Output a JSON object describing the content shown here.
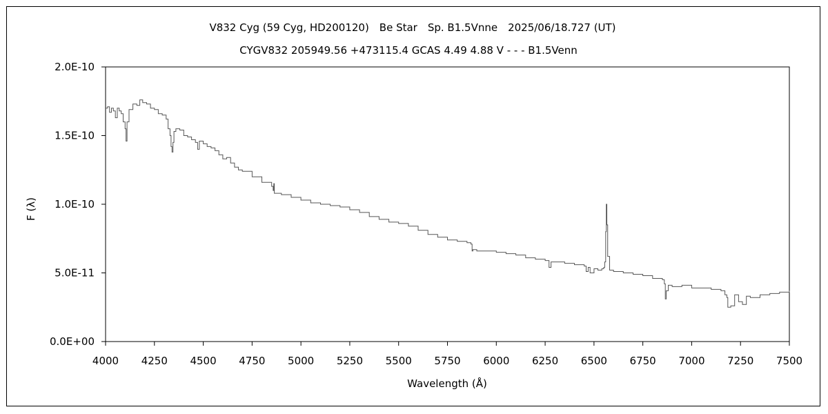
{
  "chart_data": {
    "type": "line",
    "title": "V832 Cyg (59 Cyg, HD200120)　Be Star　Sp. B1.5Vnne　2025/06/18.727 (UT)",
    "subtitle": "CYGV832 205949.56 +473115.4 GCAS 4.49 4.88 V - - - B1.5Venn",
    "xlabel": "Wavelength (Å)",
    "ylabel": "F (λ)",
    "xlim": [
      4000,
      7500
    ],
    "ylim": [
      0,
      2e-10
    ],
    "x_ticks": [
      4000,
      4250,
      4500,
      4750,
      5000,
      5250,
      5500,
      5750,
      6000,
      6250,
      6500,
      6750,
      7000,
      7250,
      7500
    ],
    "x_tick_labels": [
      "4000",
      "4250",
      "4500",
      "4750",
      "5000",
      "5250",
      "5500",
      "5750",
      "6000",
      "6250",
      "6500",
      "6750",
      "7000",
      "7250",
      "7500"
    ],
    "y_ticks": [
      0,
      5e-11,
      1e-10,
      1.5e-10,
      2e-10
    ],
    "y_tick_labels": [
      "0.0E+00",
      "5.0E-11",
      "1.0E-10",
      "1.5E-10",
      "2.0E-10"
    ],
    "grid": false,
    "series": [
      {
        "color": "#555555",
        "x": [
          4000,
          4010,
          4020,
          4030,
          4040,
          4050,
          4060,
          4070,
          4080,
          4090,
          4100,
          4105,
          4110,
          4120,
          4140,
          4160,
          4175,
          4190,
          4210,
          4230,
          4250,
          4270,
          4290,
          4310,
          4320,
          4330,
          4335,
          4340,
          4345,
          4350,
          4360,
          4380,
          4400,
          4420,
          4440,
          4460,
          4471,
          4480,
          4500,
          4520,
          4540,
          4560,
          4580,
          4600,
          4620,
          4640,
          4660,
          4680,
          4700,
          4750,
          4800,
          4850,
          4858,
          4861,
          4864,
          4870,
          4900,
          4950,
          5000,
          5050,
          5100,
          5150,
          5200,
          5250,
          5300,
          5350,
          5400,
          5450,
          5500,
          5550,
          5600,
          5650,
          5700,
          5750,
          5800,
          5850,
          5870,
          5876,
          5880,
          5890,
          5900,
          5950,
          6000,
          6050,
          6100,
          6150,
          6200,
          6250,
          6270,
          6280,
          6300,
          6350,
          6400,
          6450,
          6460,
          6470,
          6480,
          6500,
          6520,
          6540,
          6550,
          6555,
          6560,
          6563,
          6566,
          6570,
          6580,
          6600,
          6650,
          6700,
          6750,
          6800,
          6850,
          6860,
          6865,
          6870,
          6880,
          6900,
          6950,
          7000,
          7050,
          7100,
          7150,
          7170,
          7180,
          7185,
          7200,
          7220,
          7240,
          7260,
          7280,
          7300,
          7350,
          7400,
          7450,
          7500
        ],
        "y": [
          1.7e-10,
          1.71e-10,
          1.67e-10,
          1.7e-10,
          1.68e-10,
          1.63e-10,
          1.7e-10,
          1.68e-10,
          1.66e-10,
          1.6e-10,
          1.55e-10,
          1.46e-10,
          1.6e-10,
          1.69e-10,
          1.73e-10,
          1.72e-10,
          1.76e-10,
          1.74e-10,
          1.73e-10,
          1.7e-10,
          1.69e-10,
          1.66e-10,
          1.65e-10,
          1.62e-10,
          1.55e-10,
          1.5e-10,
          1.42e-10,
          1.38e-10,
          1.45e-10,
          1.53e-10,
          1.55e-10,
          1.54e-10,
          1.5e-10,
          1.49e-10,
          1.47e-10,
          1.45e-10,
          1.4e-10,
          1.46e-10,
          1.44e-10,
          1.42e-10,
          1.41e-10,
          1.39e-10,
          1.36e-10,
          1.33e-10,
          1.34e-10,
          1.3e-10,
          1.27e-10,
          1.25e-10,
          1.24e-10,
          1.2e-10,
          1.16e-10,
          1.13e-10,
          1.1e-10,
          1.15e-10,
          1.08e-10,
          1.08e-10,
          1.07e-10,
          1.05e-10,
          1.03e-10,
          1.01e-10,
          1e-10,
          9.9e-11,
          9.8e-11,
          9.6e-11,
          9.4e-11,
          9.1e-11,
          8.9e-11,
          8.7e-11,
          8.6e-11,
          8.4e-11,
          8.1e-11,
          7.8e-11,
          7.6e-11,
          7.4e-11,
          7.3e-11,
          7.2e-11,
          7.1e-11,
          6.6e-11,
          6.7e-11,
          6.7e-11,
          6.6e-11,
          6.6e-11,
          6.5e-11,
          6.4e-11,
          6.3e-11,
          6.1e-11,
          6e-11,
          5.9e-11,
          5.4e-11,
          5.8e-11,
          5.8e-11,
          5.7e-11,
          5.6e-11,
          5.5e-11,
          5.1e-11,
          5.4e-11,
          5e-11,
          5.3e-11,
          5.2e-11,
          5.3e-11,
          5.4e-11,
          5.8e-11,
          8e-11,
          1e-10,
          8.5e-11,
          6.2e-11,
          5.2e-11,
          5.1e-11,
          5e-11,
          4.9e-11,
          4.8e-11,
          4.6e-11,
          4.5e-11,
          4.2e-11,
          3.1e-11,
          3.7e-11,
          4.1e-11,
          4e-11,
          4.1e-11,
          3.9e-11,
          3.9e-11,
          3.8e-11,
          3.7e-11,
          3.4e-11,
          3.2e-11,
          2.5e-11,
          2.6e-11,
          3.4e-11,
          2.9e-11,
          2.7e-11,
          3.3e-11,
          3.2e-11,
          3.4e-11,
          3.5e-11,
          3.6e-11,
          3.7e-11
        ]
      }
    ]
  }
}
